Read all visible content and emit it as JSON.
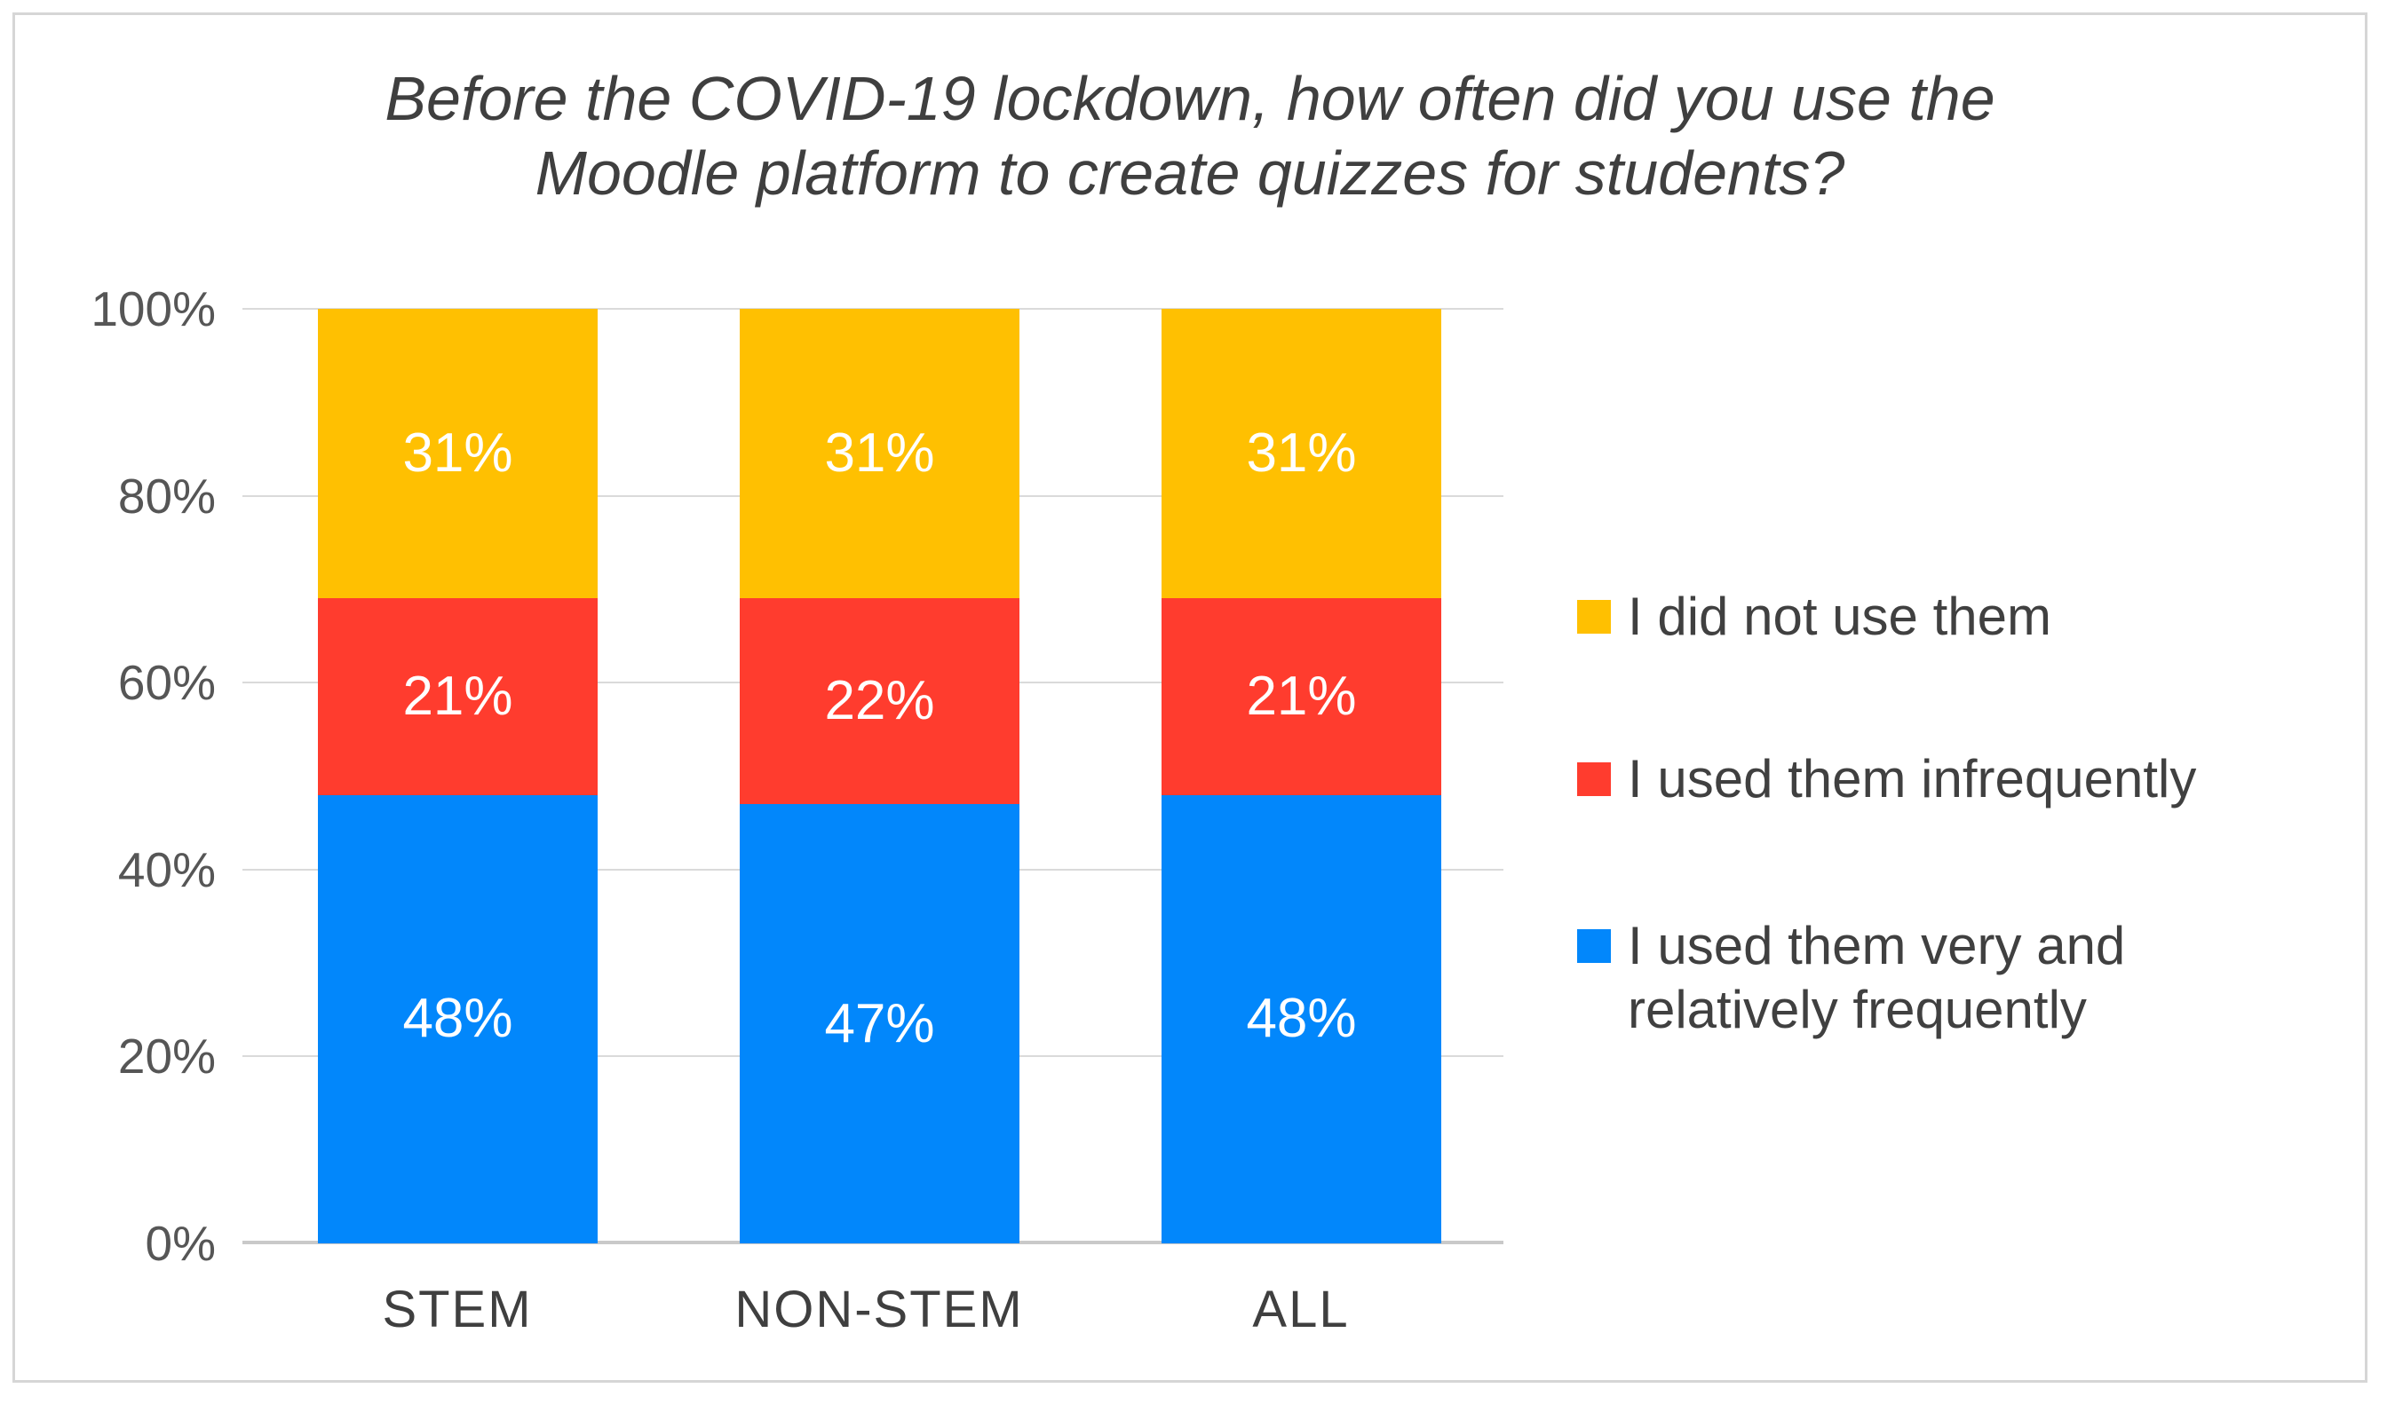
{
  "title_lines": [
    "Before the COVID-19 lockdown, how often did you use the",
    "Moodle platform to create quizzes for students?"
  ],
  "chart_data": {
    "type": "bar",
    "stacked": true,
    "title": "Before the COVID-19 lockdown, how often did you use the Moodle platform to create quizzes for students?",
    "categories": [
      "STEM",
      "NON-STEM",
      "ALL"
    ],
    "series": [
      {
        "name": "I used them very and relatively frequently",
        "color": "#0287fb",
        "values": [
          48,
          47,
          48
        ]
      },
      {
        "name": "I used them infrequently",
        "color": "#ff3c2e",
        "values": [
          21,
          22,
          21
        ]
      },
      {
        "name": "I did not use them",
        "color": "#ffc001",
        "values": [
          31,
          31,
          31
        ]
      }
    ],
    "value_label_suffix": "%",
    "y_ticks": [
      "100%",
      "80%",
      "60%",
      "40%",
      "20%",
      "0%"
    ],
    "ylim": [
      0,
      100
    ],
    "grid": true,
    "legend_position": "right",
    "colors": {
      "grid": "#dadada",
      "axis_line": "#c9c9c9",
      "title_text": "#3f3f3f",
      "tick_text": "#565656",
      "legend_text": "#404040",
      "bar_label_text": "#ffffff"
    }
  }
}
